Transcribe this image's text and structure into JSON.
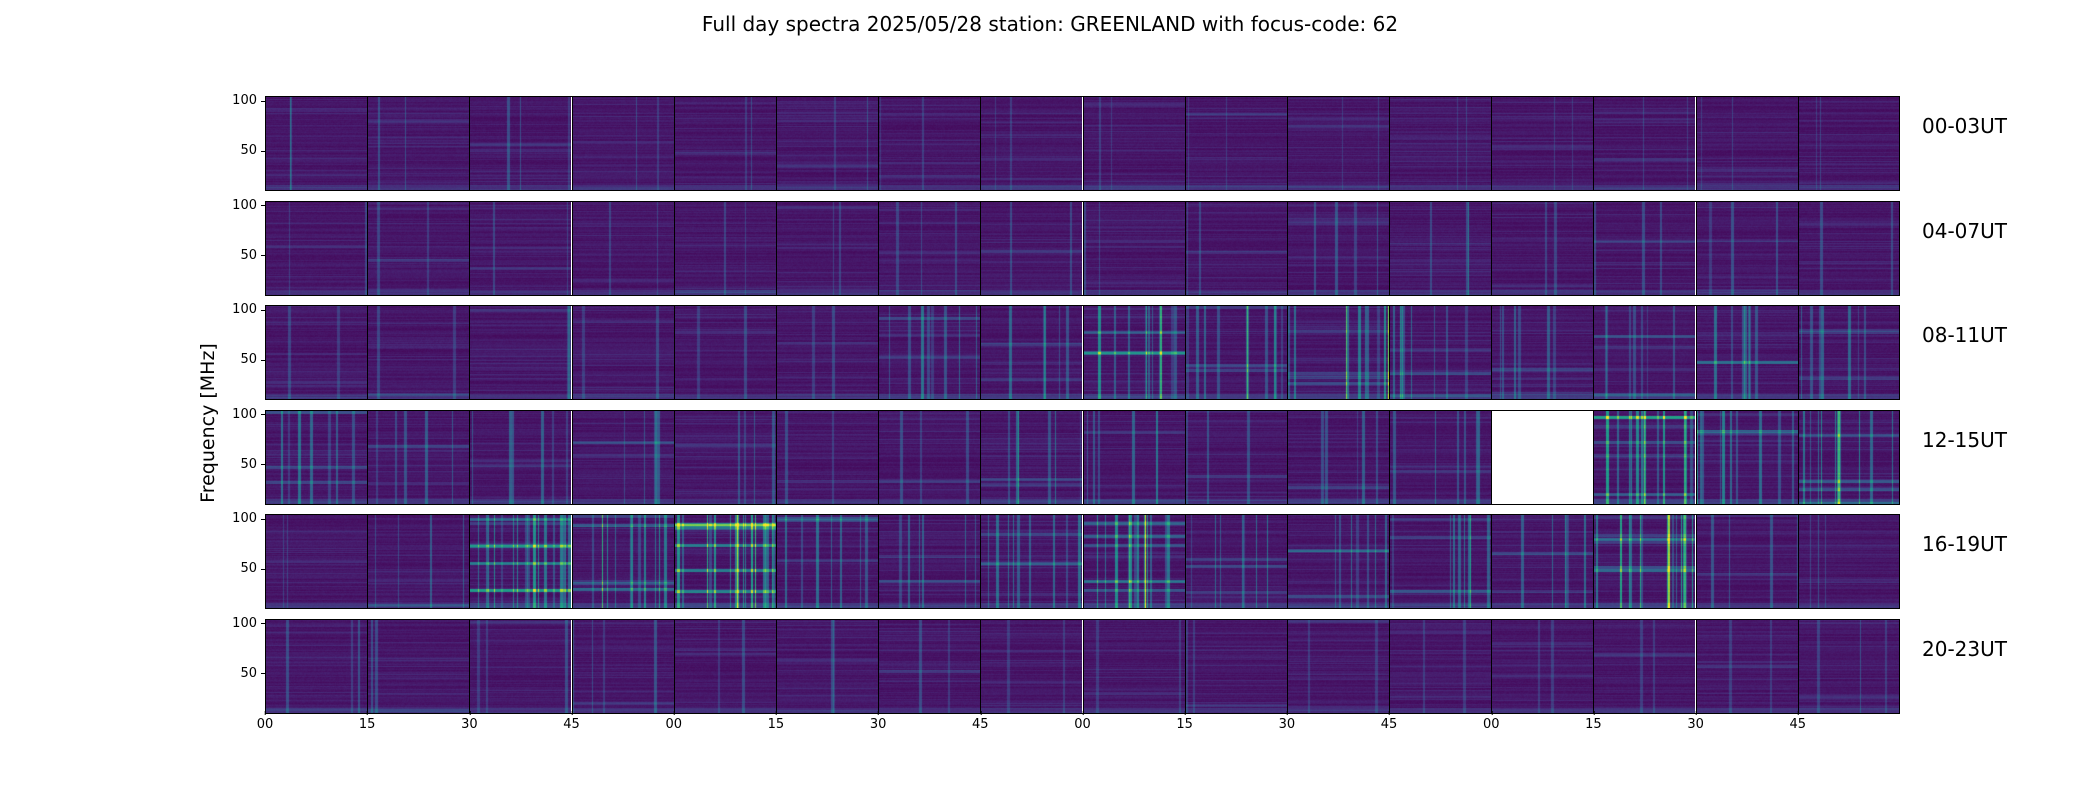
{
  "title": "Full day spectra 2025/05/28 station: GREENLAND with focus-code: 62",
  "chart_data": {
    "type": "heatmap",
    "title": "Full day spectra 2025/05/28 station: GREENLAND with focus-code: 62",
    "ylabel": "Frequency [MHz]",
    "xlabel": "",
    "colormap": "viridis",
    "yticks": [
      "100",
      "50"
    ],
    "ylim": [
      10,
      105
    ],
    "x_tick_labels": [
      "00",
      "15",
      "30",
      "45",
      "00",
      "15",
      "30",
      "45",
      "00",
      "15",
      "30",
      "45",
      "00",
      "15",
      "30",
      "45"
    ],
    "panels_per_row": 16,
    "rows": [
      {
        "label": "00-03UT",
        "activity": [
          0.1,
          0.12,
          0.14,
          0.1,
          0.1,
          0.1,
          0.12,
          0.12,
          0.1,
          0.1,
          0.1,
          0.1,
          0.1,
          0.12,
          0.1,
          0.12
        ],
        "missing": []
      },
      {
        "label": "04-07UT",
        "activity": [
          0.1,
          0.14,
          0.12,
          0.1,
          0.1,
          0.1,
          0.14,
          0.14,
          0.1,
          0.12,
          0.22,
          0.14,
          0.1,
          0.14,
          0.16,
          0.12
        ],
        "missing": []
      },
      {
        "label": "08-11UT",
        "activity": [
          0.1,
          0.1,
          0.1,
          0.1,
          0.1,
          0.1,
          0.4,
          0.3,
          0.55,
          0.5,
          0.55,
          0.4,
          0.3,
          0.35,
          0.35,
          0.35
        ],
        "missing": []
      },
      {
        "label": "12-15UT",
        "activity": [
          0.35,
          0.25,
          0.3,
          0.25,
          0.18,
          0.12,
          0.14,
          0.3,
          0.3,
          0.14,
          0.25,
          0.3,
          0.0,
          0.75,
          0.5,
          0.5
        ],
        "missing": [
          12
        ]
      },
      {
        "label": "16-19UT",
        "activity": [
          0.08,
          0.2,
          0.85,
          0.6,
          0.85,
          0.35,
          0.3,
          0.45,
          0.7,
          0.4,
          0.35,
          0.4,
          0.3,
          0.8,
          0.18,
          0.14
        ],
        "missing": []
      },
      {
        "label": "20-23UT",
        "activity": [
          0.14,
          0.12,
          0.14,
          0.18,
          0.1,
          0.1,
          0.1,
          0.1,
          0.12,
          0.1,
          0.12,
          0.1,
          0.1,
          0.12,
          0.1,
          0.14
        ],
        "missing": []
      }
    ]
  }
}
